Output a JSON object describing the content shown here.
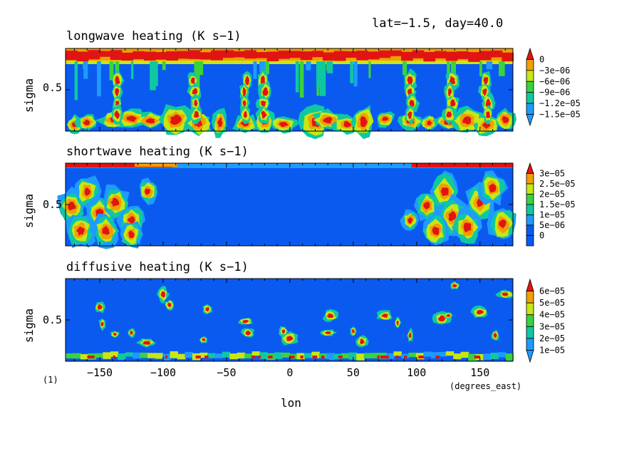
{
  "header": {
    "info": "lat=-1.5, day=40.0"
  },
  "figure": {
    "panel_label": "(1)",
    "xlabel": "lon",
    "xunits": "(degrees_east)",
    "xticks": [
      "-150",
      "-100",
      "-50",
      "0",
      "50",
      "100",
      "150"
    ],
    "xtick_values": [
      -150,
      -100,
      -50,
      0,
      50,
      100,
      150
    ]
  },
  "colors": {
    "contour_levels": [
      "#0a5af0",
      "#1e9bff",
      "#10c8a0",
      "#3cd23c",
      "#c8e614",
      "#f0a000",
      "#e11414"
    ]
  },
  "chart_data": [
    {
      "type": "heatmap",
      "title": "longwave heating (K s-1)",
      "xlabel": "lon",
      "ylabel": "sigma",
      "xlim": [
        -177,
        176
      ],
      "ylim": [
        0.05,
        1.0
      ],
      "yticks": [
        "0.5"
      ],
      "colorbar": [
        "0",
        "-3e-06",
        "-6e-06",
        "-9e-06",
        "-1.2e-05",
        "-1.5e-05"
      ],
      "colorbar_order": "descending"
    },
    {
      "type": "heatmap",
      "title": "shortwave heating (K s-1)",
      "xlabel": "lon",
      "ylabel": "sigma",
      "xlim": [
        -177,
        176
      ],
      "ylim": [
        0.05,
        1.0
      ],
      "yticks": [
        "0.5"
      ],
      "colorbar": [
        "3e-05",
        "2.5e-05",
        "2e-05",
        "1.5e-05",
        "1e-05",
        "5e-06",
        "0"
      ],
      "colorbar_order": "descending"
    },
    {
      "type": "heatmap",
      "title": "diffusive heating (K s-1)",
      "xlabel": "lon",
      "ylabel": "sigma",
      "xlim": [
        -177,
        176
      ],
      "ylim": [
        0.05,
        1.0
      ],
      "yticks": [
        "0.5"
      ],
      "colorbar": [
        "6e-05",
        "5e-05",
        "4e-05",
        "3e-05",
        "2e-05",
        "1e-05"
      ],
      "colorbar_order": "descending"
    }
  ]
}
